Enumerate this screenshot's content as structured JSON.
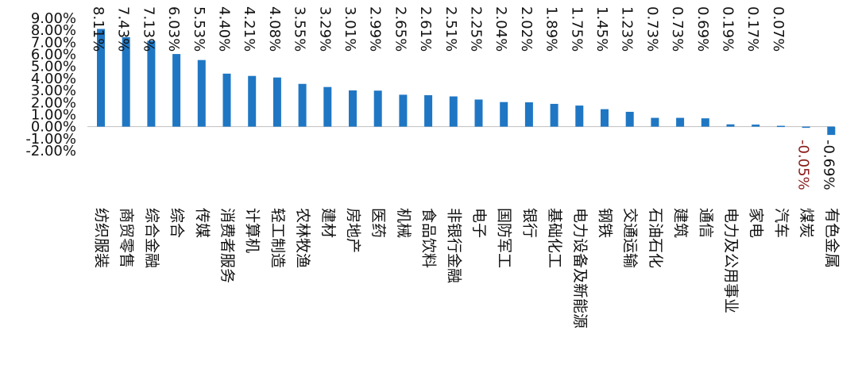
{
  "chart_data": {
    "type": "bar",
    "title": "",
    "xlabel": "",
    "ylabel": "",
    "ylim": [
      -2,
      9
    ],
    "yticks": [
      "-2.00%",
      "-1.00%",
      "0.00%",
      "1.00%",
      "2.00%",
      "3.00%",
      "4.00%",
      "5.00%",
      "6.00%",
      "7.00%",
      "8.00%",
      "9.00%"
    ],
    "categories": [
      "纺织服装",
      "商贸零售",
      "综合金融",
      "综合",
      "传媒",
      "消费者服务",
      "计算机",
      "轻工制造",
      "农林牧渔",
      "建材",
      "房地产",
      "医药",
      "机械",
      "食品饮料",
      "非银行金融",
      "电子",
      "国防军工",
      "银行",
      "基础化工",
      "电力设备及新能源",
      "钢铁",
      "交通运输",
      "石油石化",
      "建筑",
      "通信",
      "电力及公用事业",
      "家电",
      "汽车",
      "煤炭",
      "有色金属"
    ],
    "values": [
      8.11,
      7.43,
      7.13,
      6.03,
      5.53,
      4.4,
      4.21,
      4.08,
      3.55,
      3.29,
      3.01,
      2.99,
      2.65,
      2.61,
      2.51,
      2.25,
      2.04,
      2.02,
      1.89,
      1.75,
      1.45,
      1.23,
      0.73,
      0.73,
      0.69,
      0.19,
      0.17,
      0.07,
      -0.05,
      -0.69
    ],
    "labels": [
      "8.11%",
      "7.43%",
      "7.13%",
      "6.03%",
      "5.53%",
      "4.40%",
      "4.21%",
      "4.08%",
      "3.55%",
      "3.29%",
      "3.01%",
      "2.99%",
      "2.65%",
      "2.61%",
      "2.51%",
      "2.25%",
      "2.04%",
      "2.02%",
      "1.89%",
      "1.75%",
      "1.45%",
      "1.23%",
      "0.73%",
      "0.73%",
      "0.69%",
      "0.19%",
      "0.17%",
      "0.07%",
      "-0.05%",
      "-0.69%"
    ],
    "grid": false,
    "legend": "none",
    "bar_color": "#1f77c4",
    "negative_label_color": "#8b1a1a"
  }
}
